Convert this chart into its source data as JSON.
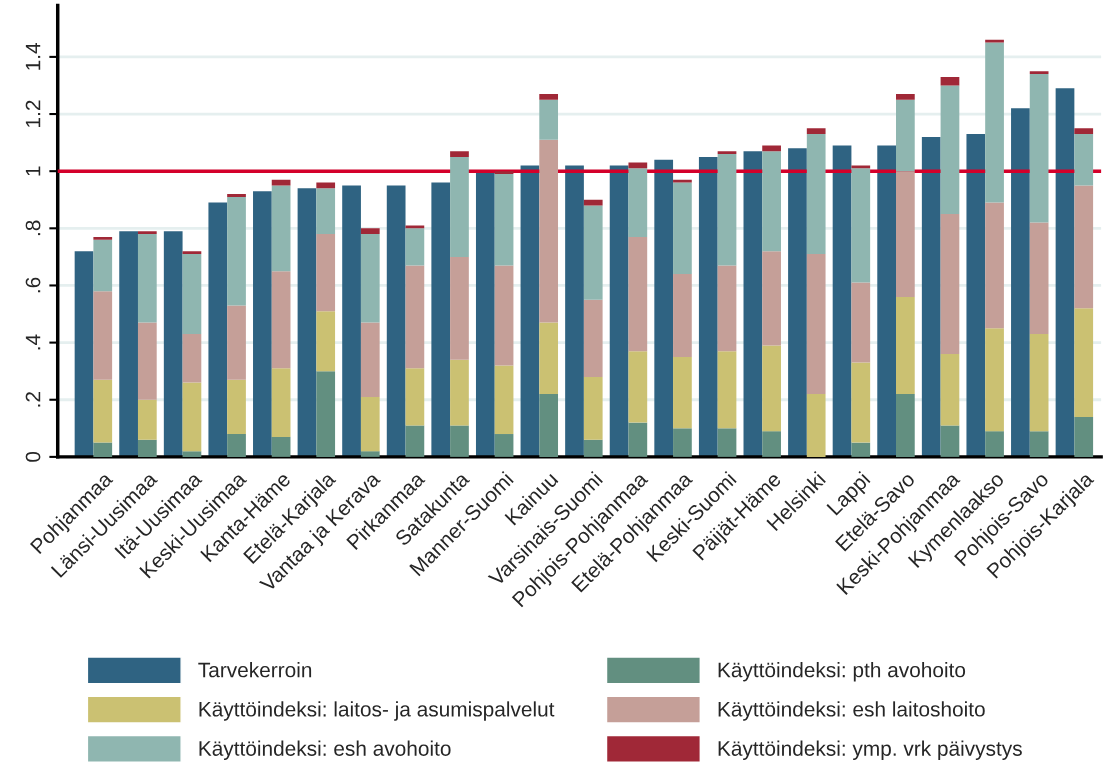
{
  "chart_data": [
    {
      "type": "bar",
      "categories": [
        null,
        null,
        null,
        null,
        null,
        null,
        null,
        null,
        null,
        null,
        null,
        null,
        null,
        null,
        null,
        null,
        null,
        null,
        null,
        null,
        null,
        null,
        null
      ],
      "series": [
        {
          "name": "Tarvekerroin",
          "color": "#2f6382",
          "values": [
            0.72,
            0.79,
            0.79,
            0.89,
            0.93,
            0.94,
            0.95,
            0.95,
            0.96,
            1.0,
            1.02,
            1.02,
            1.02,
            1.04,
            1.05,
            1.07,
            1.08,
            1.09,
            1.09,
            1.12,
            1.13,
            1.22,
            1.29
          ]
        }
      ],
      "ylim": [
        0,
        1.58
      ],
      "yticks": [
        0,
        {
          "value": 0.2,
          "label": ".2"
        },
        {
          "value": 0.4,
          "label": ".4"
        },
        {
          "value": 0.6,
          "label": ".6"
        },
        {
          "value": 0.8,
          "label": ".8"
        },
        1,
        {
          "value": 1.2,
          "label": "1.2"
        },
        {
          "value": 1.4,
          "label": "1.4"
        }
      ],
      "grid": "y",
      "legend": "bottom",
      "ref_lines": [
        {
          "axis": "y",
          "value": 1,
          "color": "#d4002a"
        }
      ]
    },
    {
      "type": "bar",
      "stacked": true,
      "categories": [
        "Pohjanmaa",
        "Länsi-Uusimaa",
        "Itä-Uusimaa",
        "Keski-Uusimaa",
        "Kanta-Häme",
        "Etelä-Karjala",
        "Vantaa ja Kerava",
        "Pirkanmaa",
        "Satakunta",
        "Manner-Suomi",
        "Kainuu",
        "Varsinais-Suomi",
        "Pohjois-Pohjanmaa",
        "Etelä-Pohjanmaa",
        "Keski-Suomi",
        "Päijät-Häme",
        "Helsinki",
        "Lappi",
        "Etelä-Savo",
        "Keski-Pohjanmaa",
        "Kymenlaakso",
        "Pohjois-Savo",
        "Pohjois-Karjala"
      ],
      "series": [
        {
          "name": "Käyttöindeksi: pth avohoito",
          "color": "#628f80",
          "values": [
            0.05,
            0.06,
            0.02,
            0.08,
            0.07,
            0.3,
            0.02,
            0.11,
            0.11,
            0.08,
            0.22,
            0.06,
            0.12,
            0.1,
            0.1,
            0.09,
            0.0,
            0.05,
            0.22,
            0.11,
            0.09,
            0.09,
            0.14
          ]
        },
        {
          "name": "Käyttöindeksi: laitos- ja asumispalvelut",
          "color": "#cbc172",
          "values": [
            0.22,
            0.14,
            0.24,
            0.19,
            0.24,
            0.21,
            0.19,
            0.2,
            0.23,
            0.24,
            0.25,
            0.22,
            0.25,
            0.25,
            0.27,
            0.3,
            0.22,
            0.28,
            0.34,
            0.25,
            0.36,
            0.34,
            0.38
          ]
        },
        {
          "name": "Käyttöindeksi: esh laitoshoito",
          "color": "#c59f98",
          "values": [
            0.31,
            0.27,
            0.17,
            0.26,
            0.34,
            0.27,
            0.26,
            0.36,
            0.36,
            0.35,
            0.64,
            0.27,
            0.4,
            0.29,
            0.3,
            0.33,
            0.49,
            0.28,
            0.44,
            0.49,
            0.44,
            0.39,
            0.43
          ]
        },
        {
          "name": "Käyttöindeksi: esh avohoito",
          "color": "#8fb6b0",
          "values": [
            0.18,
            0.31,
            0.28,
            0.38,
            0.3,
            0.16,
            0.31,
            0.13,
            0.35,
            0.32,
            0.14,
            0.33,
            0.24,
            0.32,
            0.39,
            0.35,
            0.42,
            0.4,
            0.25,
            0.45,
            0.56,
            0.52,
            0.18
          ]
        },
        {
          "name": "Käyttöindeksi: ymp. vrk päivystys",
          "color": "#a02837",
          "values": [
            0.01,
            0.01,
            0.01,
            0.01,
            0.02,
            0.02,
            0.02,
            0.01,
            0.02,
            0.01,
            0.02,
            0.02,
            0.02,
            0.01,
            0.01,
            0.02,
            0.02,
            0.01,
            0.02,
            0.03,
            0.01,
            0.01,
            0.02
          ]
        }
      ],
      "ylim": [
        0,
        1.58
      ],
      "tick_labels": "x",
      "legend": "bottom"
    }
  ]
}
